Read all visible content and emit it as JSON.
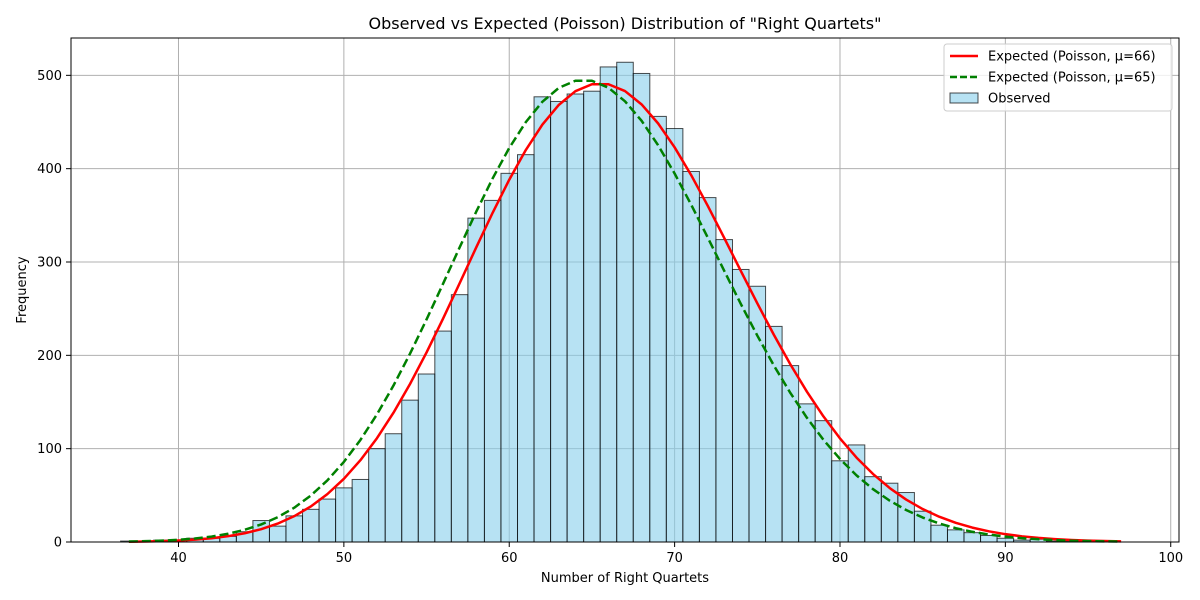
{
  "chart_data": {
    "type": "bar",
    "title": "Observed vs Expected (Poisson) Distribution of \"Right Quartets\"",
    "xlabel": "Number of Right Quartets",
    "ylabel": "Frequency",
    "xlim": [
      33.5,
      100.5
    ],
    "ylim": [
      0,
      540
    ],
    "xticks": [
      40,
      50,
      60,
      70,
      80,
      90,
      100
    ],
    "yticks": [
      0,
      100,
      200,
      300,
      400,
      500
    ],
    "grid": true,
    "legend_position": "top-right",
    "colors": {
      "bar_fill": "#87CEEB",
      "bar_edge": "#000000",
      "expected_66": "#FF0000",
      "expected_65": "#008000",
      "grid": "#b0b0b0"
    },
    "histogram": {
      "name": "Observed",
      "bin_start": 36.5,
      "bin_width": 1,
      "counts": [
        1,
        1,
        2,
        2,
        4,
        4,
        6,
        11,
        23,
        17,
        28,
        35,
        46,
        58,
        67,
        100,
        116,
        152,
        180,
        226,
        265,
        347,
        366,
        395,
        415,
        477,
        472,
        480,
        483,
        509,
        514,
        502,
        456,
        443,
        397,
        369,
        324,
        292,
        274,
        231,
        189,
        148,
        130,
        87,
        104,
        70,
        63,
        53,
        33,
        18,
        13,
        10,
        7,
        4,
        2,
        3,
        1,
        1,
        1,
        0,
        0
      ]
    },
    "series": [
      {
        "name": "Expected (Poisson, μ=66)",
        "mu": 66,
        "style": "solid",
        "color": "#FF0000"
      },
      {
        "name": "Expected (Poisson, μ=65)",
        "mu": 65,
        "style": "dashed",
        "color": "#008000"
      }
    ],
    "expected_total": 10000,
    "curve_x_range": [
      37,
      97
    ]
  }
}
